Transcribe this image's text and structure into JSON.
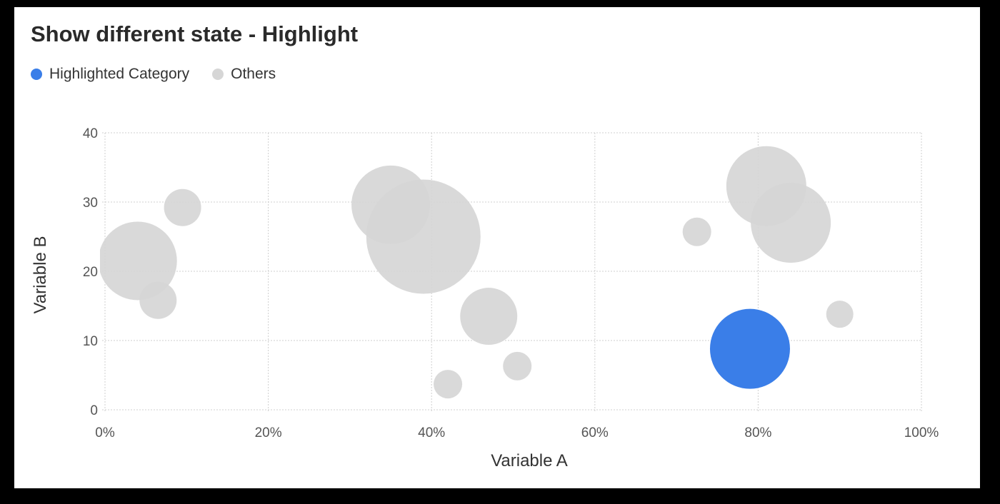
{
  "chart_data": {
    "type": "scatter",
    "title": "Show different state - Highlight",
    "xlabel": "Variable A",
    "ylabel": "Variable B",
    "xlim": [
      0,
      100
    ],
    "ylim": [
      0,
      40
    ],
    "x_ticks": [
      "0%",
      "20%",
      "40%",
      "60%",
      "80%",
      "100%"
    ],
    "y_ticks": [
      "0",
      "10",
      "20",
      "30",
      "40"
    ],
    "x_tick_values": [
      0,
      20,
      40,
      60,
      80,
      100
    ],
    "y_tick_values": [
      0,
      10,
      20,
      30,
      40
    ],
    "grid": true,
    "legend_position": "top-left",
    "series": [
      {
        "name": "Others",
        "color": "#d6d6d6",
        "points": [
          {
            "x": 4,
            "y": 21.5,
            "size": 55
          },
          {
            "x": 9.5,
            "y": 29.2,
            "size": 26
          },
          {
            "x": 6.5,
            "y": 15.8,
            "size": 26
          },
          {
            "x": 35,
            "y": 29.6,
            "size": 55
          },
          {
            "x": 39,
            "y": 25,
            "size": 80
          },
          {
            "x": 47,
            "y": 13.5,
            "size": 40
          },
          {
            "x": 42,
            "y": 3.7,
            "size": 20
          },
          {
            "x": 50.5,
            "y": 6.3,
            "size": 20
          },
          {
            "x": 72.5,
            "y": 25.7,
            "size": 20
          },
          {
            "x": 81,
            "y": 32.3,
            "size": 56
          },
          {
            "x": 84,
            "y": 27,
            "size": 56
          },
          {
            "x": 90,
            "y": 13.8,
            "size": 19
          }
        ]
      },
      {
        "name": "Highlighted Category",
        "color": "#3a7ee8",
        "points": [
          {
            "x": 79,
            "y": 8.8,
            "size": 56
          }
        ]
      }
    ]
  },
  "legend": {
    "items": [
      {
        "label": "Highlighted Category",
        "color": "#3a7ee8"
      },
      {
        "label": "Others",
        "color": "#d6d6d6"
      }
    ]
  }
}
